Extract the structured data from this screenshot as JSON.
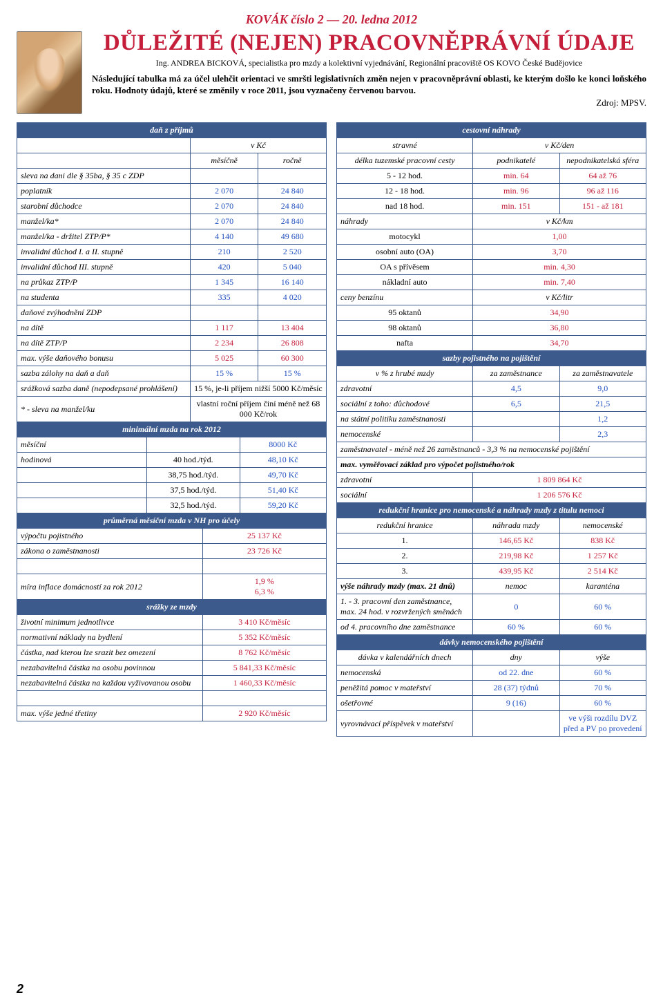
{
  "masthead": "KOVÁK číslo 2 — 20. ledna 2012",
  "title": "DŮLEŽITÉ (NEJEN) PRACOVNĚPRÁVNÍ ÚDAJE",
  "author": "Ing. ANDREA BICKOVÁ, specialistka pro mzdy a kolektivní vyjednávání, Regionální pracoviště OS KOVO České Budějovice",
  "intro": "Následující tabulka má za účel ulehčit orientaci ve smršti legislativních změn nejen v pracovněprávní oblasti, ke kterým došlo ke konci loňského roku. Hodnoty údajů, které se změnily v roce 2011, jsou vyznačeny červenou barvou.",
  "source": "Zdroj: MPSV.",
  "pagenum": "2",
  "t1": {
    "header": "daň z příjmů",
    "unit": "v Kč",
    "c1": "měsíčně",
    "c2": "ročně",
    "rows": [
      {
        "l": "sleva na dani dle § 35ba, § 35 c ZDP",
        "m": "",
        "r": ""
      },
      {
        "l": "poplatník",
        "m": "2 070",
        "r": "24 840"
      },
      {
        "l": "starobní důchodce",
        "m": "2 070",
        "r": "24 840"
      },
      {
        "l": "manžel/ka*",
        "m": "2 070",
        "r": "24 840"
      },
      {
        "l": "manžel/ka - držitel ZTP/P*",
        "m": "4 140",
        "r": "49 680"
      },
      {
        "l": "invalidní důchod I. a II. stupně",
        "m": "210",
        "r": "2 520"
      },
      {
        "l": "invalidní důchod III. stupně",
        "m": "420",
        "r": "5 040"
      },
      {
        "l": "na průkaz ZTP/P",
        "m": "1 345",
        "r": "16 140"
      },
      {
        "l": "na studenta",
        "m": "335",
        "r": "4 020"
      },
      {
        "l": "daňové zvýhodnění ZDP",
        "m": "",
        "r": ""
      },
      {
        "l": "na dítě",
        "m": "1 117",
        "r": "13 404"
      },
      {
        "l": "na dítě ZTP/P",
        "m": "2 234",
        "r": "26 808"
      },
      {
        "l": "max. výše daňového bonusu",
        "m": "5 025",
        "r": "60 300"
      },
      {
        "l": "sazba zálohy na daň a daň",
        "m": "15 %",
        "r": "15 %"
      }
    ],
    "s1l": "srážková sazba daně (nepodepsané prohlášení)",
    "s1v": "15 %, je-li příjem nižší 5000 Kč/měsíc",
    "s2l": "* - sleva na manžel/ku",
    "s2v": "vlastní roční příjem činí méně než 68 000 Kč/rok"
  },
  "t2": {
    "header": "minimální mzda na rok 2012",
    "rows": [
      {
        "l": "měsíční",
        "a": "",
        "b": "8000 Kč"
      },
      {
        "l": "hodinová",
        "a": "40 hod./týd.",
        "b": "48,10 Kč"
      },
      {
        "l": "",
        "a": "38,75 hod./týd.",
        "b": "49,70 Kč"
      },
      {
        "l": "",
        "a": "37,5 hod./týd.",
        "b": "51,40 Kč"
      },
      {
        "l": "",
        "a": "32,5 hod./týd.",
        "b": "59,20 Kč"
      }
    ]
  },
  "t3": {
    "header": "průměrná měsíční mzda v NH pro účely",
    "r1l": "výpočtu pojistného",
    "r1v": "25 137 Kč",
    "r2l": "zákona o zaměstnanosti",
    "r2v": "23 726 Kč",
    "r3l": "míra inflace domácností za rok 2012",
    "r3v": "1,9 %\n6,3 %"
  },
  "t4": {
    "header": "srážky ze mzdy",
    "rows": [
      {
        "l": "životní minimum jednotlivce",
        "v": "3 410 Kč/měsíc"
      },
      {
        "l": "normativní náklady na bydlení",
        "v": "5 352 Kč/měsíc"
      },
      {
        "l": "částka, nad kterou lze srazit bez omezení",
        "v": "8 762 Kč/měsíc"
      },
      {
        "l": "nezabavitelná částka na osobu povinnou",
        "v": "5 841,33 Kč/měsíc"
      },
      {
        "l": "nezabavitelná částka na každou vyživovanou osobu",
        "v": "1 460,33 Kč/měsíc"
      },
      {
        "l": "",
        "v": ""
      },
      {
        "l": "max. výše jedné třetiny",
        "v": "2 920 Kč/měsíc"
      }
    ]
  },
  "r1": {
    "header": "cestovní náhrady",
    "sub1": "stravné",
    "sub1u": "v Kč/den",
    "sub2": "délka tuzemské pracovní cesty",
    "sub2a": "podnikatelé",
    "sub2b": "nepodnikatelská sféra",
    "rows": [
      {
        "l": "5 - 12 hod.",
        "a": "min. 64",
        "b": "64 až 76"
      },
      {
        "l": "12 - 18 hod.",
        "a": "min. 96",
        "b": "96 až 116"
      },
      {
        "l": "nad 18 hod.",
        "a": "min. 151",
        "b": "151 - až 181"
      }
    ],
    "nahrady": "náhrady",
    "nahradyu": "v Kč/km",
    "nrows": [
      {
        "l": "motocykl",
        "v": "1,00"
      },
      {
        "l": "osobní auto (OA)",
        "v": "3,70"
      },
      {
        "l": "OA s přívěsem",
        "v": "min. 4,30"
      },
      {
        "l": "nákladní auto",
        "v": "min. 7,40"
      }
    ],
    "benz": "ceny benzínu",
    "benzu": "v Kč/litr",
    "brows": [
      {
        "l": "95 oktanů",
        "v": "34,90"
      },
      {
        "l": "98 oktanů",
        "v": "36,80"
      },
      {
        "l": "nafta",
        "v": "34,70"
      }
    ]
  },
  "r2": {
    "header": "sazby pojistného na pojištění",
    "sub": "v % z hrubé mzdy",
    "c1": "za zaměstnance",
    "c2": "za zaměstnavatele",
    "rows": [
      {
        "l": "zdravotní",
        "a": "4,5",
        "b": "9,0"
      },
      {
        "l": "sociální  z toho: důchodové",
        "a": "6,5",
        "b": "21,5"
      },
      {
        "l": "na státní politiku zaměstnanosti",
        "a": "",
        "b": "1,2"
      },
      {
        "l": "nemocenské",
        "a": "",
        "b": "2,3"
      }
    ],
    "note": "zaměstnavatel - méně než 26 zaměstnanců - 3,3 % na nemocenské pojištění",
    "maxh": "max. vyměřovací základ pro výpočet pojistného/rok",
    "mr": [
      {
        "l": "zdravotní",
        "v": "1 809 864 Kč"
      },
      {
        "l": "sociální",
        "v": "1 206 576 Kč"
      }
    ]
  },
  "r3": {
    "header": "redukční hranice pro nemocenské a náhrady mzdy z titulu nemoci",
    "sub": "redukční hranice",
    "c1": "náhrada mzdy",
    "c2": "nemocenské",
    "rows": [
      {
        "l": "1.",
        "a": "146,65 Kč",
        "b": "838 Kč"
      },
      {
        "l": "2.",
        "a": "219,98 Kč",
        "b": "1 257 Kč"
      },
      {
        "l": "3.",
        "a": "439,95 Kč",
        "b": "2 514 Kč"
      }
    ],
    "vys": "výše náhrady mzdy (max. 21 dnů)",
    "vc1": "nemoc",
    "vc2": "karanténa",
    "vrows": [
      {
        "l": "1. - 3. pracovní den zaměstnance, max. 24 hod. v rozvržených směnách",
        "a": "0",
        "b": "60 %"
      },
      {
        "l": "od 4. pracovního dne zaměstnance",
        "a": "60 %",
        "b": "60 %"
      }
    ]
  },
  "r4": {
    "header": "dávky nemocenského pojištění",
    "sub": "dávka v kalendářních dnech",
    "c1": "dny",
    "c2": "výše",
    "rows": [
      {
        "l": "nemocenská",
        "a": "od 22. dne",
        "b": "60 %"
      },
      {
        "l": "peněžitá pomoc v mateřství",
        "a": "28 (37) týdnů",
        "b": "70 %"
      },
      {
        "l": "ošetřovné",
        "a": "9 (16)",
        "b": "60 %"
      },
      {
        "l": "vyrovnávací příspěvek v mateřství",
        "a": "",
        "b": "ve výši rozdílu DVZ před a PV po provedení"
      }
    ]
  }
}
